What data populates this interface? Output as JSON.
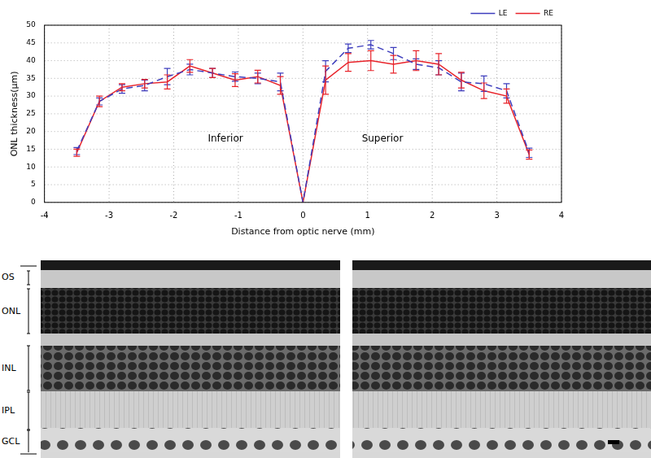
{
  "chart_data": {
    "type": "line",
    "x_label": "Distance from optic nerve (mm)",
    "y_label": "ONL thickness(μm)",
    "x": [
      -3.5,
      -3.15,
      -2.8,
      -2.45,
      -2.1,
      -1.75,
      -1.4,
      -1.05,
      -0.7,
      -0.35,
      0,
      0.35,
      0.7,
      1.05,
      1.4,
      1.75,
      2.1,
      2.45,
      2.8,
      3.15,
      3.5
    ],
    "series": [
      {
        "name": "LE",
        "color": "#3d3dbd",
        "line_style": "dashed",
        "values": [
          14.5,
          28.5,
          32,
          33,
          35.5,
          37.5,
          36.5,
          35.5,
          35,
          34,
          0,
          37,
          43.5,
          44.5,
          42,
          39,
          38,
          34,
          33.5,
          31.5,
          14
        ],
        "errors": [
          1,
          1,
          1.2,
          1.5,
          2.3,
          1.5,
          1.3,
          1.3,
          1.5,
          2.5,
          0,
          3,
          1.2,
          1.2,
          1.7,
          1.5,
          2,
          2.5,
          2.2,
          2,
          1.3
        ]
      },
      {
        "name": "RE",
        "color": "#e8232a",
        "line_style": "solid",
        "values": [
          14,
          28.5,
          32.5,
          33.5,
          34,
          38.5,
          36.5,
          34.5,
          35.5,
          33,
          0,
          34.5,
          39.5,
          40,
          39,
          40,
          39,
          34.5,
          31.5,
          30,
          13.5
        ],
        "errors": [
          1,
          1.5,
          1,
          1.2,
          2,
          1.8,
          1.3,
          1.8,
          1.8,
          2.5,
          0,
          4,
          2.5,
          2.8,
          2.5,
          2.8,
          3,
          2.2,
          2.2,
          2,
          1.3
        ]
      }
    ],
    "annotations": [
      {
        "text": "Inferior",
        "x": -1.2,
        "y": 18
      },
      {
        "text": "Superior",
        "x": 1.23,
        "y": 18
      }
    ],
    "xlim": [
      -4,
      4
    ],
    "xticks": [
      -4,
      -3,
      -2,
      -1,
      0,
      1,
      2,
      3,
      4
    ],
    "ylim": [
      0,
      50
    ],
    "yticks": [
      0,
      5,
      10,
      15,
      20,
      25,
      30,
      35,
      40,
      45,
      50
    ],
    "grid": true,
    "legend": "upper right"
  },
  "layers": [
    "OS",
    "ONL",
    "INL",
    "IPL",
    "GCL"
  ]
}
